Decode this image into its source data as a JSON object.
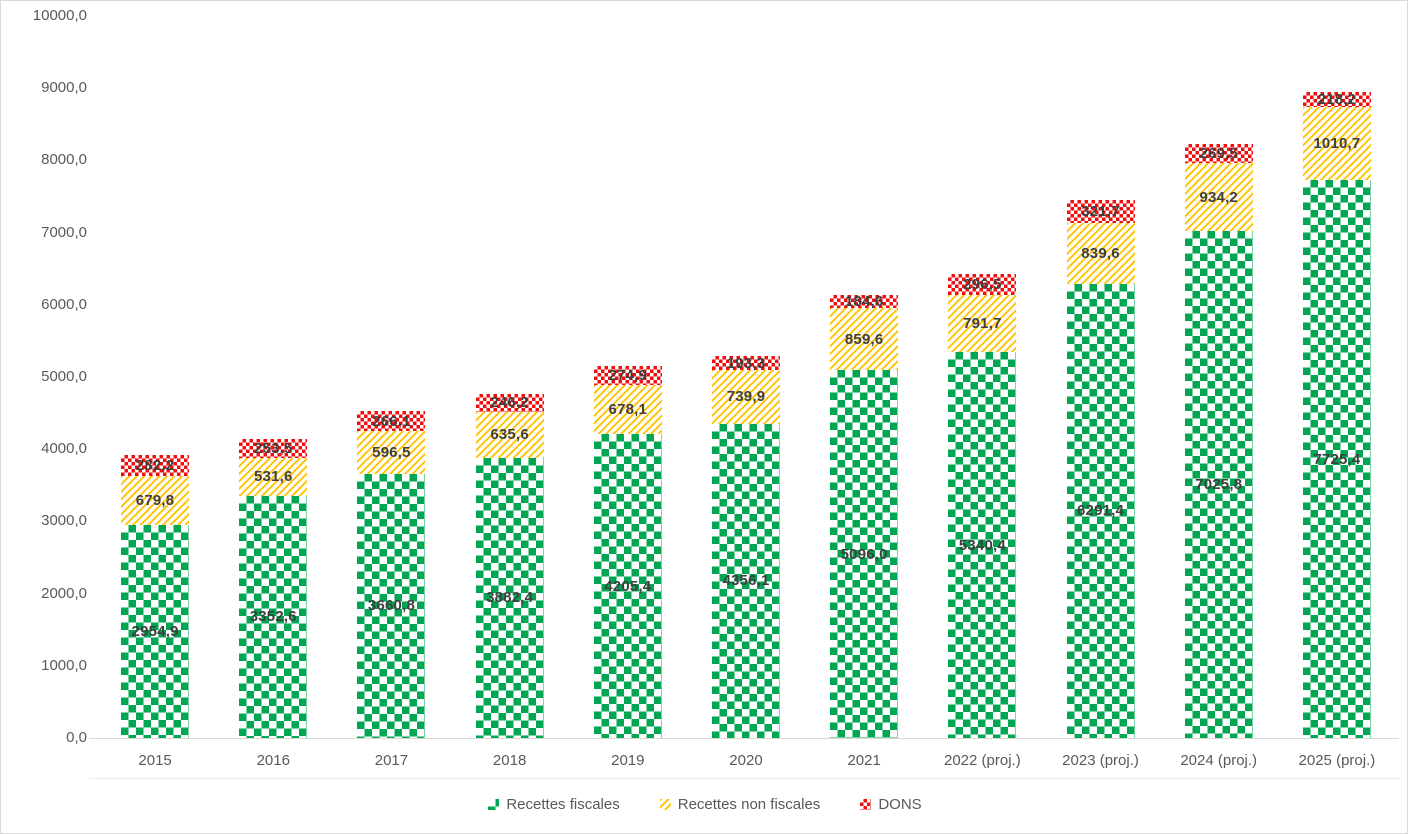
{
  "chart_data": {
    "type": "bar",
    "stacked": true,
    "title": "",
    "xlabel": "",
    "ylabel": "",
    "grid": false,
    "legend_position": "bottom",
    "ylim": [
      0,
      10000
    ],
    "y_tick_step": 1000,
    "y_tick_labels": [
      "0,0",
      "1000,0",
      "2000,0",
      "3000,0",
      "4000,0",
      "5000,0",
      "6000,0",
      "7000,0",
      "8000,0",
      "9000,0",
      "10000,0"
    ],
    "categories": [
      "2015",
      "2016",
      "2017",
      "2018",
      "2019",
      "2020",
      "2021",
      "2022 (proj.)",
      "2023 (proj.)",
      "2024 (proj.)",
      "2025 (proj.)"
    ],
    "series": [
      {
        "name": "Recettes fiscales",
        "color": "#00A651",
        "pattern": "green-checker",
        "values": [
          2954.9,
          3352.6,
          3660.8,
          3882.4,
          4205.4,
          4356.1,
          5096.0,
          5340.4,
          6291.4,
          7025.8,
          7725.4
        ],
        "labels": [
          "2954,9",
          "3352,6",
          "3660,8",
          "3882,4",
          "4205,4",
          "4356,1",
          "5096,0",
          "5340,4",
          "6291,4",
          "7025,8",
          "7725,4"
        ]
      },
      {
        "name": "Recettes non fiscales",
        "color": "#FFC000",
        "pattern": "yellow-diagonal",
        "values": [
          679.8,
          531.6,
          596.5,
          635.6,
          678.1,
          739.9,
          859.6,
          791.7,
          839.6,
          934.2,
          1010.7
        ],
        "labels": [
          "679,8",
          "531,6",
          "596,5",
          "635,6",
          "678,1",
          "739,9",
          "859,6",
          "791,7",
          "839,6",
          "934,2",
          "1010,7"
        ]
      },
      {
        "name": "DONS",
        "color": "#FF0000",
        "pattern": "red-checker",
        "values": [
          282.2,
          253.5,
          266.1,
          246.2,
          274.9,
          193.3,
          184.6,
          296.5,
          321.7,
          269.5,
          218.2
        ],
        "labels": [
          "282,2",
          "253,5",
          "266,1",
          "246,2",
          "274,9",
          "193,3",
          "184,6",
          "296,5",
          "321,7",
          "269,5",
          "218,2"
        ]
      }
    ]
  }
}
